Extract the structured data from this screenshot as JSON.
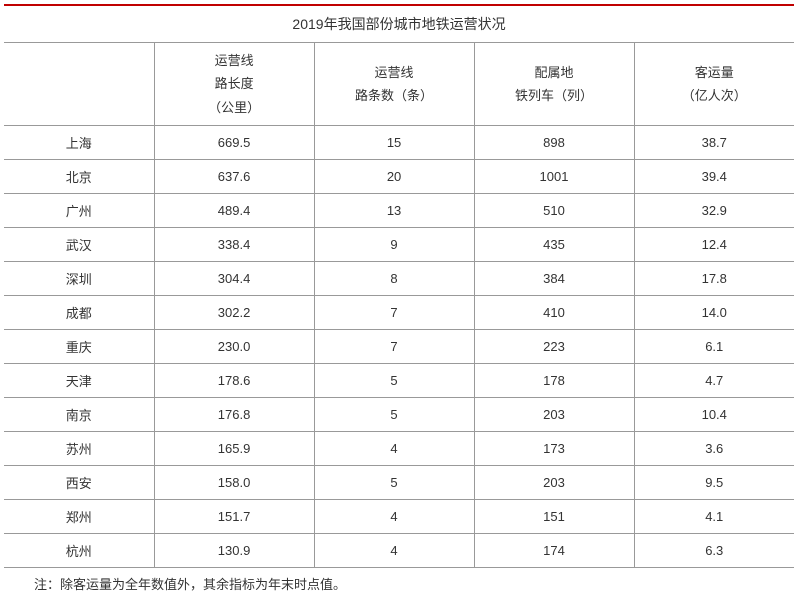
{
  "table": {
    "title": "2019年我国部份城市地铁运营状况",
    "columns": [
      {
        "line1": "",
        "line2": "",
        "line3": ""
      },
      {
        "line1": "运营线",
        "line2": "路长度",
        "line3": "（公里）"
      },
      {
        "line1": "运营线",
        "line2": "路条数（条）",
        "line3": ""
      },
      {
        "line1": "配属地",
        "line2": "铁列车（列）",
        "line3": ""
      },
      {
        "line1": "客运量",
        "line2": "（亿人次）",
        "line3": ""
      }
    ],
    "rows": [
      {
        "city": "上海",
        "length": "669.5",
        "lines": "15",
        "trains": "898",
        "passengers": "38.7"
      },
      {
        "city": "北京",
        "length": "637.6",
        "lines": "20",
        "trains": "1001",
        "passengers": "39.4"
      },
      {
        "city": "广州",
        "length": "489.4",
        "lines": "13",
        "trains": "510",
        "passengers": "32.9"
      },
      {
        "city": "武汉",
        "length": "338.4",
        "lines": "9",
        "trains": "435",
        "passengers": "12.4"
      },
      {
        "city": "深圳",
        "length": "304.4",
        "lines": "8",
        "trains": "384",
        "passengers": "17.8"
      },
      {
        "city": "成都",
        "length": "302.2",
        "lines": "7",
        "trains": "410",
        "passengers": "14.0"
      },
      {
        "city": "重庆",
        "length": "230.0",
        "lines": "7",
        "trains": "223",
        "passengers": "6.1"
      },
      {
        "city": "天津",
        "length": "178.6",
        "lines": "5",
        "trains": "178",
        "passengers": "4.7"
      },
      {
        "city": "南京",
        "length": "176.8",
        "lines": "5",
        "trains": "203",
        "passengers": "10.4"
      },
      {
        "city": "苏州",
        "length": "165.9",
        "lines": "4",
        "trains": "173",
        "passengers": "3.6"
      },
      {
        "city": "西安",
        "length": "158.0",
        "lines": "5",
        "trains": "203",
        "passengers": "9.5"
      },
      {
        "city": "郑州",
        "length": "151.7",
        "lines": "4",
        "trains": "151",
        "passengers": "4.1"
      },
      {
        "city": "杭州",
        "length": "130.9",
        "lines": "4",
        "trains": "174",
        "passengers": "6.3"
      }
    ],
    "footnote": "注：除客运量为全年数值外，其余指标为年末时点值。"
  },
  "styling": {
    "border_top_color": "#c00000",
    "border_color": "#999999",
    "text_color": "#333333",
    "background_color": "#ffffff",
    "font_size_title": 14,
    "font_size_body": 13
  }
}
